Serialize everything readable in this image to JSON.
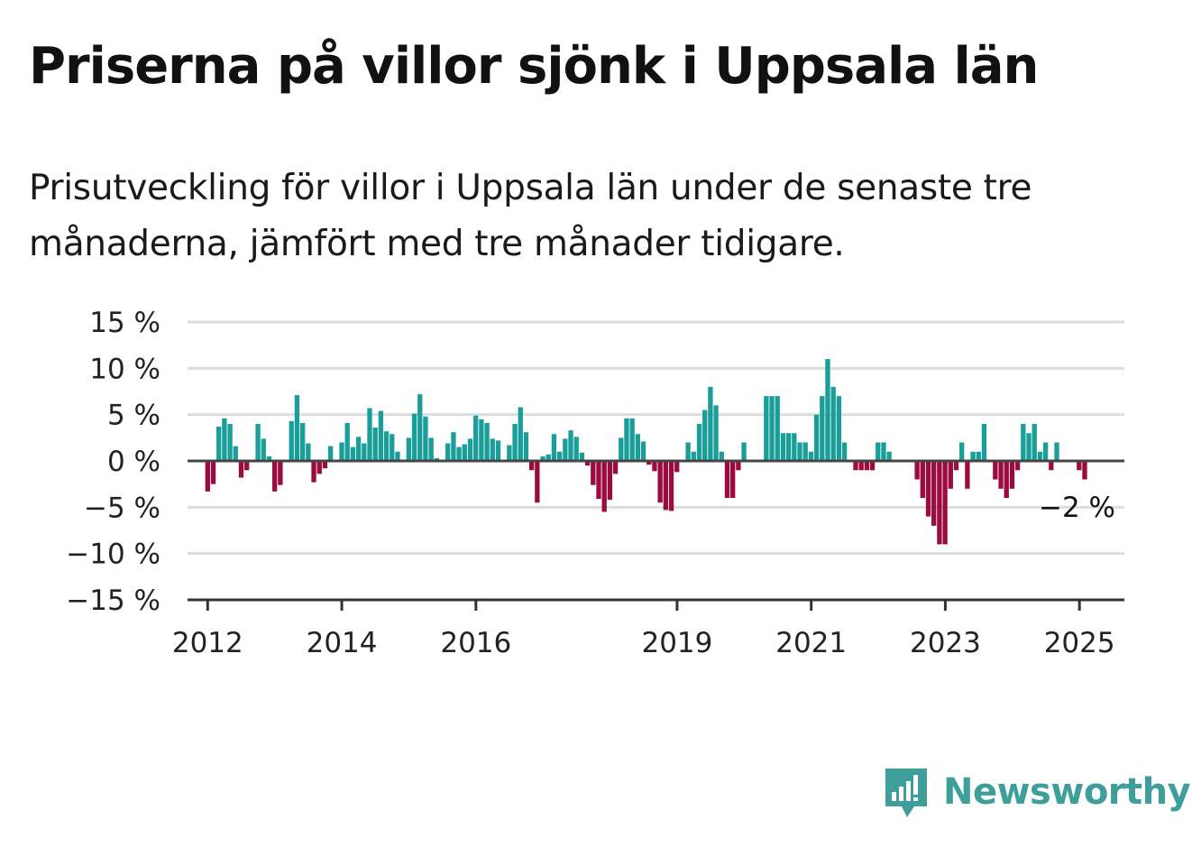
{
  "title": "Priserna på villor sjönk i Uppsala län",
  "subtitle": "Prisutveckling för villor i Uppsala län under de senaste tre månaderna, jämfört med tre månader tidigare.",
  "brand": {
    "name": "Newsworthy",
    "icon": "newsworthy-logo-icon",
    "color": "#3e9e9a"
  },
  "colors": {
    "positive": "#1a9e9a",
    "negative": "#9b0b3f",
    "grid": "#dddddd",
    "axis": "#444444"
  },
  "chart_data": {
    "type": "bar",
    "ylim": [
      -15,
      15
    ],
    "y_ticks": [
      15,
      10,
      5,
      0,
      -5,
      -10,
      -15
    ],
    "y_tick_labels": [
      "15 %",
      "10 %",
      "5 %",
      "0 %",
      "−5 %",
      "−10 %",
      "−15 %"
    ],
    "x_ticks": [
      2012,
      2014,
      2016,
      2019,
      2021,
      2023,
      2025
    ],
    "x_tick_labels": [
      "2012",
      "2014",
      "2016",
      "2019",
      "2021",
      "2023",
      "2025"
    ],
    "x_range": [
      2011.7,
      2025.67
    ],
    "start": 2012.0,
    "step": 0.0833,
    "values": [
      -3.3,
      -2.5,
      3.7,
      4.6,
      4.0,
      1.6,
      -1.8,
      -1.0,
      0,
      4.0,
      2.4,
      0.5,
      -3.3,
      -2.6,
      0,
      4.3,
      7.1,
      4.1,
      1.9,
      -2.3,
      -1.4,
      -0.8,
      1.6,
      0,
      2.0,
      4.1,
      1.5,
      2.6,
      1.9,
      5.7,
      3.6,
      5.4,
      3.2,
      2.9,
      1.0,
      0,
      2.5,
      5.1,
      7.2,
      4.8,
      2.5,
      0.3,
      0,
      1.9,
      3.1,
      1.5,
      1.8,
      2.4,
      4.9,
      4.5,
      4.1,
      2.4,
      2.2,
      0,
      1.7,
      4.0,
      5.8,
      3.1,
      -1.0,
      -4.5,
      0.5,
      0.7,
      2.9,
      1.0,
      2.4,
      3.3,
      2.6,
      0.9,
      -0.5,
      -2.6,
      -4.1,
      -5.5,
      -4.2,
      -1.4,
      2.5,
      4.6,
      4.6,
      2.9,
      2.1,
      -0.4,
      -1.1,
      -4.5,
      -5.3,
      -5.4,
      -1.2,
      0,
      2.0,
      1.0,
      4.0,
      5.5,
      8.0,
      6.0,
      1.0,
      -4.0,
      -4.0,
      -1.0,
      2.0,
      0,
      0,
      0,
      7.0,
      7.0,
      7.0,
      3.0,
      3.0,
      3.0,
      2.0,
      2.0,
      1.0,
      5.0,
      7.0,
      11.0,
      8.0,
      7.0,
      2.0,
      0,
      -1.0,
      -1.0,
      -1.0,
      -1.0,
      2.0,
      2.0,
      1.0,
      0,
      0,
      0,
      0,
      -2.0,
      -4.0,
      -6.0,
      -7.0,
      -9.0,
      -9.0,
      -3.0,
      -1.0,
      2.0,
      -3.0,
      1.0,
      1.0,
      4.0,
      0,
      -2.0,
      -3.0,
      -4.0,
      -3.0,
      -1.0,
      4.0,
      3.0,
      4.0,
      1.0,
      2.0,
      -1.0,
      2.0,
      0,
      0,
      0,
      -1.0,
      -2.0
    ],
    "last_value_label": "−2 %"
  }
}
